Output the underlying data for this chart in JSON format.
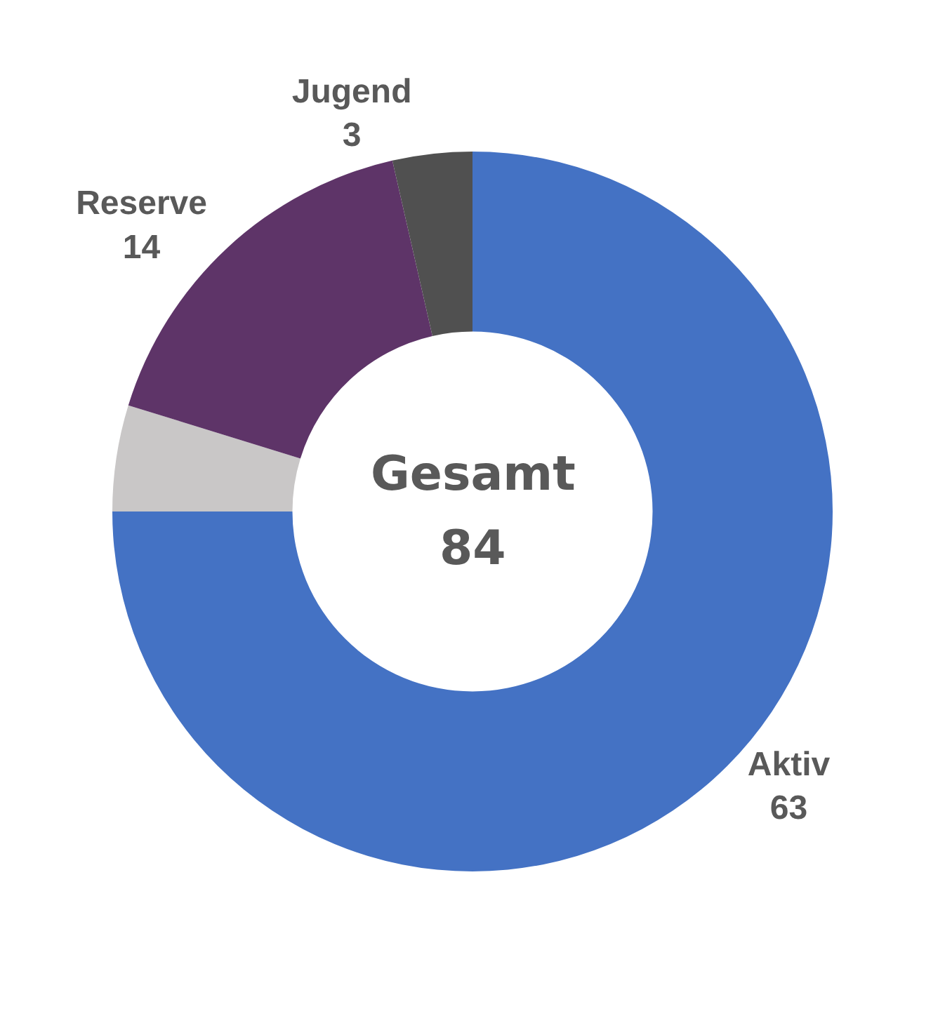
{
  "chart_data": {
    "type": "donut",
    "categories": [
      "Aktiv",
      null,
      "Reserve",
      "Jugend"
    ],
    "values": [
      63,
      4,
      14,
      3
    ],
    "value_labels": [
      "63",
      null,
      "14",
      "3"
    ],
    "colors": [
      "#4472c4",
      "#c9c7c7",
      "#5e3468",
      "#505050"
    ],
    "annotations": [
      "Gesamt",
      "84"
    ],
    "legend": false
  }
}
